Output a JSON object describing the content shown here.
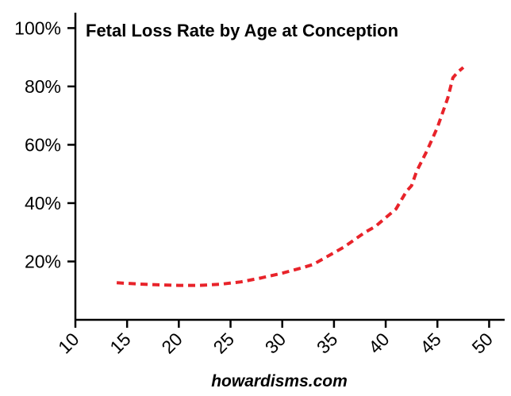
{
  "chart_data": {
    "type": "line",
    "title": "Fetal Loss Rate by Age at Conception",
    "xlabel": "",
    "ylabel": "",
    "caption": "howardisms.com",
    "xlim": [
      10,
      51.5
    ],
    "ylim": [
      0,
      105
    ],
    "x_ticks": [
      10,
      15,
      20,
      25,
      30,
      35,
      40,
      45,
      50
    ],
    "x_tick_labels": [
      "10",
      "15",
      "20",
      "25",
      "30",
      "35",
      "40",
      "45",
      "50"
    ],
    "y_ticks": [
      20,
      40,
      60,
      80,
      100
    ],
    "y_tick_labels": [
      "20%",
      "40%",
      "60%",
      "80%",
      "100%"
    ],
    "grid": false,
    "legend": "none",
    "series_color": "#e8232a",
    "line_style": "dashed",
    "series": [
      {
        "x": [
          14,
          16,
          18,
          20,
          22,
          24,
          26,
          28,
          30,
          32,
          33,
          34,
          36,
          38,
          39,
          40,
          41,
          42,
          42.5,
          43,
          44,
          45,
          46,
          46.5,
          47,
          47.5
        ],
        "values": [
          12.7,
          12.3,
          12,
          11.8,
          11.8,
          12.2,
          13,
          14.4,
          16,
          17.9,
          19,
          21,
          25,
          30,
          32,
          35,
          38,
          44,
          46,
          51,
          58,
          66,
          76,
          83,
          85,
          86.5
        ]
      }
    ]
  }
}
